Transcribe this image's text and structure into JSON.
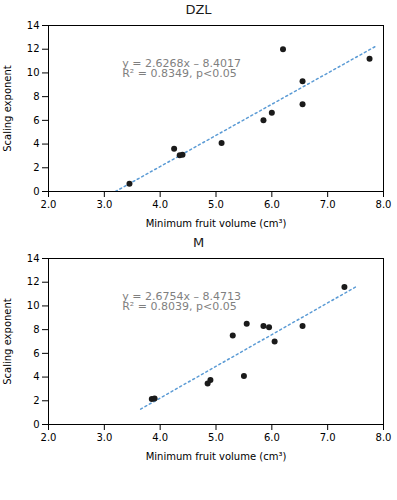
{
  "chart_data": [
    {
      "type": "scatter",
      "title": "DZL",
      "x": [
        3.45,
        4.25,
        4.35,
        4.4,
        5.1,
        5.85,
        6.0,
        6.2,
        6.55,
        6.55,
        7.75
      ],
      "values": [
        0.65,
        3.6,
        3.05,
        3.1,
        4.1,
        6.0,
        6.65,
        12.0,
        9.3,
        7.35,
        11.2
      ],
      "color": "#1a1a1a",
      "marker": "circle",
      "series": [
        {
          "type": "line",
          "x": [
            3.2,
            7.85
          ],
          "values": [
            0.00406,
            12.21868
          ],
          "color": "#5b9bd5",
          "line_style": "dotted"
        }
      ],
      "annotations": [
        {
          "text": "y = 2.6268x – 8.4017\nR² = 0.8349, p<0.05",
          "color": "#7f7f7f"
        }
      ],
      "xlabel": "Minimum fruit volume (cm³)",
      "ylabel": "Scaling exponent",
      "xlim": [
        2,
        8
      ],
      "ylim": [
        0,
        14
      ],
      "xticks": [
        2,
        3,
        4,
        5,
        6,
        7,
        8
      ],
      "yticks": [
        0,
        2,
        4,
        6,
        8,
        10,
        12,
        14
      ],
      "grid": false
    },
    {
      "type": "scatter",
      "title": "M",
      "x": [
        3.85,
        3.9,
        4.85,
        4.9,
        5.3,
        5.5,
        5.55,
        5.85,
        5.95,
        6.05,
        6.55,
        7.3
      ],
      "values": [
        2.15,
        2.2,
        3.45,
        3.75,
        7.5,
        4.1,
        8.5,
        8.3,
        8.2,
        7.0,
        8.3,
        11.6
      ],
      "color": "#1a1a1a",
      "marker": "circle",
      "series": [
        {
          "type": "line",
          "x": [
            3.65,
            7.5
          ],
          "values": [
            1.29391,
            11.5942
          ],
          "color": "#5b9bd5",
          "line_style": "dotted"
        }
      ],
      "annotations": [
        {
          "text": "y = 2.6754x – 8.4713\nR² = 0.8039, p<0.05",
          "color": "#7f7f7f"
        }
      ],
      "xlabel": "Minimum fruit volume (cm³)",
      "ylabel": "Scaling exponent",
      "xlim": [
        2,
        8
      ],
      "ylim": [
        0,
        14
      ],
      "xticks": [
        2,
        3,
        4,
        5,
        6,
        7,
        8
      ],
      "yticks": [
        0,
        2,
        4,
        6,
        8,
        10,
        12,
        14
      ],
      "grid": false
    }
  ]
}
